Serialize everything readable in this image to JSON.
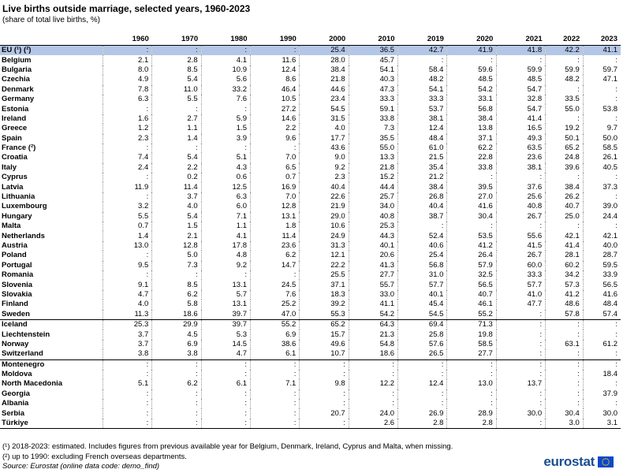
{
  "title": "Live births outside marriage, selected years, 1960-2023",
  "subtitle": "(share of total live births, %)",
  "columns": [
    "1960",
    "1970",
    "1980",
    "1990",
    "2000",
    "2010",
    "2019",
    "2020",
    "2021",
    "2022",
    "2023"
  ],
  "rows": [
    {
      "name": "EU (¹) (²)",
      "v": [
        ":",
        ":",
        ":",
        ":",
        "25.4",
        "36.5",
        "42.7",
        "41.9",
        "41.8",
        "42.2",
        "41.1"
      ]
    },
    {
      "name": "Belgium",
      "v": [
        "2.1",
        "2.8",
        "4.1",
        "11.6",
        "28.0",
        "45.7",
        ":",
        ":",
        ":",
        ":",
        ":"
      ]
    },
    {
      "name": "Bulgaria",
      "v": [
        "8.0",
        "8.5",
        "10.9",
        "12.4",
        "38.4",
        "54.1",
        "58.4",
        "59.6",
        "59.9",
        "59.9",
        "59.7"
      ]
    },
    {
      "name": "Czechia",
      "v": [
        "4.9",
        "5.4",
        "5.6",
        "8.6",
        "21.8",
        "40.3",
        "48.2",
        "48.5",
        "48.5",
        "48.2",
        "47.1"
      ]
    },
    {
      "name": "Denmark",
      "v": [
        "7.8",
        "11.0",
        "33.2",
        "46.4",
        "44.6",
        "47.3",
        "54.1",
        "54.2",
        "54.7",
        ":",
        ":"
      ]
    },
    {
      "name": "Germany",
      "v": [
        "6.3",
        "5.5",
        "7.6",
        "10.5",
        "23.4",
        "33.3",
        "33.3",
        "33.1",
        "32.8",
        "33.5",
        ":"
      ]
    },
    {
      "name": "Estonia",
      "v": [
        ":",
        ":",
        ":",
        "27.2",
        "54.5",
        "59.1",
        "53.7",
        "56.8",
        "54.7",
        "55.0",
        "53.8"
      ]
    },
    {
      "name": "Ireland",
      "v": [
        "1.6",
        "2.7",
        "5.9",
        "14.6",
        "31.5",
        "33.8",
        "38.1",
        "38.4",
        "41.4",
        ":",
        ":"
      ]
    },
    {
      "name": "Greece",
      "v": [
        "1.2",
        "1.1",
        "1.5",
        "2.2",
        "4.0",
        "7.3",
        "12.4",
        "13.8",
        "16.5",
        "19.2",
        "9.7"
      ]
    },
    {
      "name": "Spain",
      "v": [
        "2.3",
        "1.4",
        "3.9",
        "9.6",
        "17.7",
        "35.5",
        "48.4",
        "37.1",
        "49.3",
        "50.1",
        "50.0"
      ]
    },
    {
      "name": "France (²)",
      "v": [
        ":",
        ":",
        ":",
        ":",
        "43.6",
        "55.0",
        "61.0",
        "62.2",
        "63.5",
        "65.2",
        "58.5"
      ]
    },
    {
      "name": "Croatia",
      "v": [
        "7.4",
        "5.4",
        "5.1",
        "7.0",
        "9.0",
        "13.3",
        "21.5",
        "22.8",
        "23.6",
        "24.8",
        "26.1"
      ]
    },
    {
      "name": "Italy",
      "v": [
        "2.4",
        "2.2",
        "4.3",
        "6.5",
        "9.2",
        "21.8",
        "35.4",
        "33.8",
        "38.1",
        "39.6",
        "40.5"
      ]
    },
    {
      "name": "Cyprus",
      "v": [
        ":",
        "0.2",
        "0.6",
        "0.7",
        "2.3",
        "15.2",
        "21.2",
        ":",
        ":",
        ":",
        ":"
      ]
    },
    {
      "name": "Latvia",
      "v": [
        "11.9",
        "11.4",
        "12.5",
        "16.9",
        "40.4",
        "44.4",
        "38.4",
        "39.5",
        "37.6",
        "38.4",
        "37.3"
      ]
    },
    {
      "name": "Lithuania",
      "v": [
        ":",
        "3.7",
        "6.3",
        "7.0",
        "22.6",
        "25.7",
        "26.8",
        "27.0",
        "25.6",
        "26.2",
        ":"
      ]
    },
    {
      "name": "Luxembourg",
      "v": [
        "3.2",
        "4.0",
        "6.0",
        "12.8",
        "21.9",
        "34.0",
        "40.4",
        "41.6",
        "40.8",
        "40.7",
        "39.0"
      ]
    },
    {
      "name": "Hungary",
      "v": [
        "5.5",
        "5.4",
        "7.1",
        "13.1",
        "29.0",
        "40.8",
        "38.7",
        "30.4",
        "26.7",
        "25.0",
        "24.4"
      ]
    },
    {
      "name": "Malta",
      "v": [
        "0.7",
        "1.5",
        "1.1",
        "1.8",
        "10.6",
        "25.3",
        ":",
        ":",
        ":",
        ":",
        ":"
      ]
    },
    {
      "name": "Netherlands",
      "v": [
        "1.4",
        "2.1",
        "4.1",
        "11.4",
        "24.9",
        "44.3",
        "52.4",
        "53.5",
        "55.6",
        "42.1",
        "42.1"
      ]
    },
    {
      "name": "Austria",
      "v": [
        "13.0",
        "12.8",
        "17.8",
        "23.6",
        "31.3",
        "40.1",
        "40.6",
        "41.2",
        "41.5",
        "41.4",
        "40.0"
      ]
    },
    {
      "name": "Poland",
      "v": [
        ":",
        "5.0",
        "4.8",
        "6.2",
        "12.1",
        "20.6",
        "25.4",
        "26.4",
        "26.7",
        "28.1",
        "28.7"
      ]
    },
    {
      "name": "Portugal",
      "v": [
        "9.5",
        "7.3",
        "9.2",
        "14.7",
        "22.2",
        "41.3",
        "56.8",
        "57.9",
        "60.0",
        "60.2",
        "59.5"
      ]
    },
    {
      "name": "Romania",
      "v": [
        ":",
        ":",
        ":",
        ":",
        "25.5",
        "27.7",
        "31.0",
        "32.5",
        "33.3",
        "34.2",
        "33.9"
      ]
    },
    {
      "name": "Slovenia",
      "v": [
        "9.1",
        "8.5",
        "13.1",
        "24.5",
        "37.1",
        "55.7",
        "57.7",
        "56.5",
        "57.7",
        "57.3",
        "56.5"
      ]
    },
    {
      "name": "Slovakia",
      "v": [
        "4.7",
        "6.2",
        "5.7",
        "7.6",
        "18.3",
        "33.0",
        "40.1",
        "40.7",
        "41.0",
        "41.2",
        "41.6"
      ]
    },
    {
      "name": "Finland",
      "v": [
        "4.0",
        "5.8",
        "13.1",
        "25.2",
        "39.2",
        "41.1",
        "45.4",
        "46.1",
        "47.7",
        "48.6",
        "48.4"
      ]
    },
    {
      "name": "Sweden",
      "v": [
        "11.3",
        "18.6",
        "39.7",
        "47.0",
        "55.3",
        "54.2",
        "54.5",
        "55.2",
        ":",
        "57.8",
        "57.4"
      ]
    },
    {
      "name": "Iceland",
      "v": [
        "25.3",
        "29.9",
        "39.7",
        "55.2",
        "65.2",
        "64.3",
        "69.4",
        "71.3",
        ":",
        ":",
        ":"
      ]
    },
    {
      "name": "Liechtenstein",
      "v": [
        "3.7",
        "4.5",
        "5.3",
        "6.9",
        "15.7",
        "21.3",
        "25.8",
        "19.8",
        ":",
        ":",
        ":"
      ]
    },
    {
      "name": "Norway",
      "v": [
        "3.7",
        "6.9",
        "14.5",
        "38.6",
        "49.6",
        "54.8",
        "57.6",
        "58.5",
        ":",
        "63.1",
        "61.2"
      ]
    },
    {
      "name": "Switzerland",
      "v": [
        "3.8",
        "3.8",
        "4.7",
        "6.1",
        "10.7",
        "18.6",
        "26.5",
        "27.7",
        ":",
        ":",
        ":"
      ]
    },
    {
      "name": "Montenegro",
      "v": [
        ":",
        ":",
        ":",
        ":",
        ":",
        ":",
        ":",
        ":",
        ":",
        ":",
        ":"
      ]
    },
    {
      "name": "Moldova",
      "v": [
        ":",
        ":",
        ":",
        ":",
        ":",
        ":",
        ":",
        ":",
        ":",
        ":",
        "18.4"
      ]
    },
    {
      "name": "North Macedonia",
      "v": [
        "5.1",
        "6.2",
        "6.1",
        "7.1",
        "9.8",
        "12.2",
        "12.4",
        "13.0",
        "13.7",
        ":",
        ":"
      ]
    },
    {
      "name": "Georgia",
      "v": [
        ":",
        ":",
        ":",
        ":",
        ":",
        ":",
        ":",
        ":",
        ":",
        ":",
        "37.9"
      ]
    },
    {
      "name": "Albania",
      "v": [
        ":",
        ":",
        ":",
        ":",
        ":",
        ":",
        ":",
        ":",
        ":",
        ":",
        ":"
      ]
    },
    {
      "name": "Serbia",
      "v": [
        ":",
        ":",
        ":",
        ":",
        "20.7",
        "24.0",
        "26.9",
        "28.9",
        "30.0",
        "30.4",
        "30.0"
      ]
    },
    {
      "name": "Türkiye",
      "v": [
        ":",
        ":",
        ":",
        ":",
        ":",
        "2.6",
        "2.8",
        "2.8",
        ":",
        "3.0",
        "3.1"
      ]
    }
  ],
  "separators": [
    28,
    32
  ],
  "notes": {
    "n1": "(¹) 2018-2023: estimated. Includes figures from previous available year for Belgium, Denmark, Ireland, Cyprus and Malta, when missing.",
    "n2": "(²) up to 1990: excluding French overseas departments.",
    "source": "Source: Eurostat (online data code: demo_find)"
  },
  "logo": {
    "text": "eurostat",
    "color": "#1b4f91"
  },
  "colors": {
    "highlight": "#b4c6e7",
    "flag": "#0e47cb",
    "stars": "#ffdd00"
  }
}
